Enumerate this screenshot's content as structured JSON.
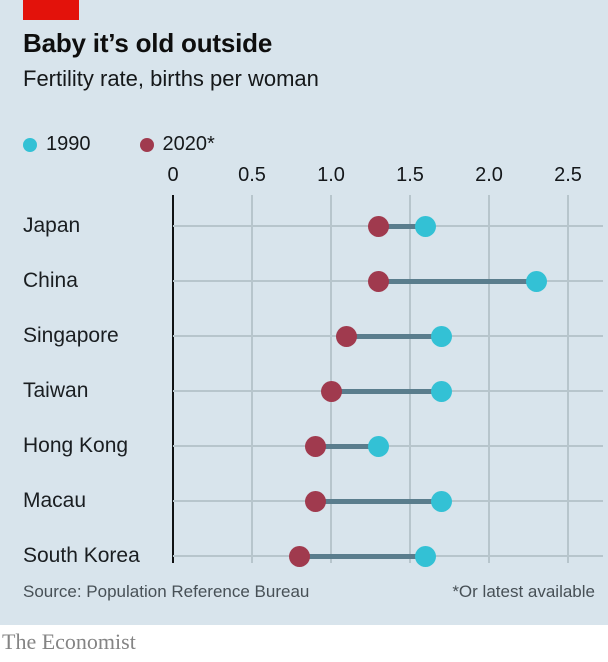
{
  "header": {
    "tag_color": "#e3120b",
    "title": "Baby it’s old outside",
    "subtitle": "Fertility rate, births per woman"
  },
  "legend": {
    "items": [
      {
        "label": "1990",
        "color": "#33c1d5"
      },
      {
        "label": "2020*",
        "color": "#a03a4e"
      }
    ]
  },
  "chart_data": {
    "type": "scatter",
    "variant": "dumbbell-dot-plot",
    "title": "Baby it’s old outside",
    "subtitle": "Fertility rate, births per woman",
    "categories": [
      "Japan",
      "China",
      "Singapore",
      "Taiwan",
      "Hong Kong",
      "Macau",
      "South Korea"
    ],
    "series": [
      {
        "name": "1990",
        "color": "#33c1d5",
        "values": [
          1.6,
          2.3,
          1.7,
          1.7,
          1.3,
          1.7,
          1.6
        ]
      },
      {
        "name": "2020*",
        "color": "#a03a4e",
        "values": [
          1.3,
          1.3,
          1.1,
          1.0,
          0.9,
          0.9,
          0.8
        ]
      }
    ],
    "xlim": [
      0,
      2.5
    ],
    "ticks": [
      {
        "value": 0,
        "label": "0"
      },
      {
        "value": 0.5,
        "label": "0.5"
      },
      {
        "value": 1,
        "label": "1.0"
      },
      {
        "value": 1.5,
        "label": "1.5"
      },
      {
        "value": 2,
        "label": "2.0"
      },
      {
        "value": 2.5,
        "label": "2.5"
      }
    ],
    "grid": true,
    "legend_position": "top-left",
    "orientation": "horizontal"
  },
  "footer": {
    "source": "Source: Population Reference Bureau",
    "note": "*Or latest available"
  },
  "brand": {
    "name": "The Economist"
  },
  "colors": {
    "background": "#d8e4ec",
    "grid": "#b7c5cc",
    "axis": "#101214",
    "connector": "#5a7d8d",
    "series_1990": "#33c1d5",
    "series_2020": "#a03a4e",
    "tag_red": "#e3120b"
  }
}
